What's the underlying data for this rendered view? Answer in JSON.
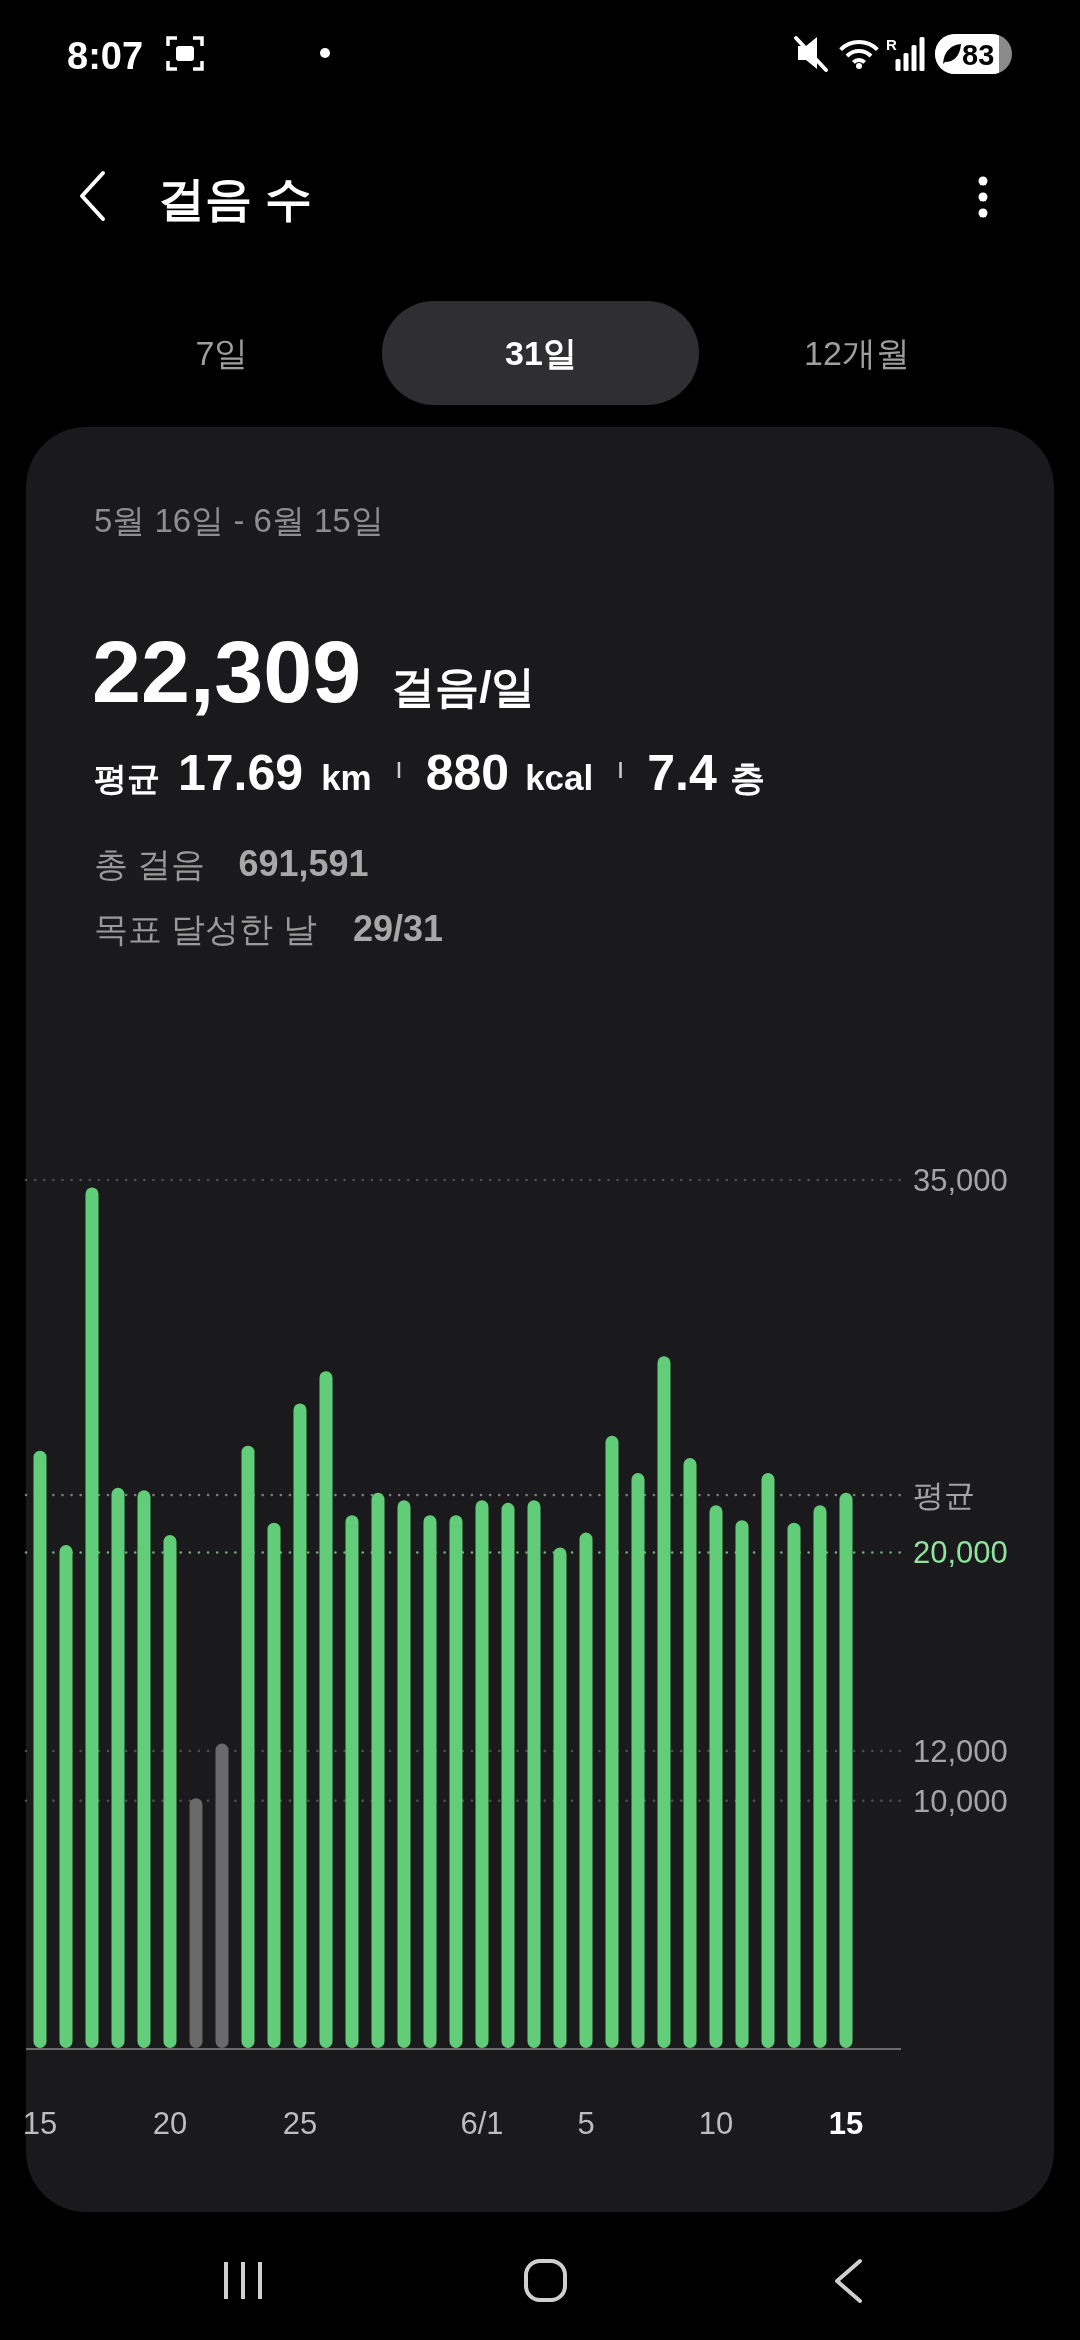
{
  "chart_data": {
    "type": "bar",
    "title": "걸음 수",
    "subtitle": "5월 16일 - 6월 15일",
    "categories": [
      "15",
      null,
      null,
      null,
      null,
      "20",
      null,
      null,
      null,
      null,
      "25",
      null,
      null,
      null,
      null,
      null,
      null,
      "6/1",
      null,
      null,
      null,
      "5",
      null,
      null,
      null,
      null,
      "10",
      null,
      null,
      null,
      null,
      "15"
    ],
    "values": [
      24100,
      20300,
      34700,
      22600,
      22500,
      20700,
      10100,
      12300,
      24300,
      21200,
      26000,
      27300,
      21500,
      22400,
      22100,
      21500,
      21500,
      22100,
      22000,
      22100,
      20200,
      20800,
      24700,
      23200,
      27900,
      23800,
      21900,
      21300,
      23200,
      21200,
      21900,
      22400
    ],
    "colors": [
      "#62cd78",
      "#62cd78",
      "#62cd78",
      "#62cd78",
      "#62cd78",
      "#62cd78",
      "#6a6a6a",
      "#6a6a6a",
      "#62cd78",
      "#62cd78",
      "#62cd78",
      "#62cd78",
      "#62cd78",
      "#62cd78",
      "#62cd78",
      "#62cd78",
      "#62cd78",
      "#62cd78",
      "#62cd78",
      "#62cd78",
      "#62cd78",
      "#62cd78",
      "#62cd78",
      "#62cd78",
      "#62cd78",
      "#62cd78",
      "#62cd78",
      "#62cd78",
      "#62cd78",
      "#62cd78",
      "#62cd78",
      "#62cd78"
    ],
    "ylim": [
      0,
      35000
    ],
    "yticks": [
      {
        "value": 10000,
        "label": "10,000"
      },
      {
        "value": 12000,
        "label": "12,000"
      },
      {
        "value": 35000,
        "label": "35,000"
      }
    ],
    "grid": "y",
    "ref_lines": [
      {
        "axis": "y",
        "value": 20000,
        "label": "20,000",
        "color": "#8ee39f",
        "line_style": "dotted"
      },
      {
        "axis": "y",
        "value": 22309,
        "label": "평균",
        "color": "#a3a3a3",
        "line_style": "dotted"
      }
    ],
    "annotations": [
      "8:07",
      "83",
      "R",
      "7일",
      "31일",
      "12개월",
      "22,309",
      "걸음/일",
      "평균",
      "17.69",
      "km",
      "880",
      "kcal",
      "7.4",
      "층",
      "총 걸음",
      "691,591",
      "목표 달성한 날",
      "29/31"
    ]
  }
}
